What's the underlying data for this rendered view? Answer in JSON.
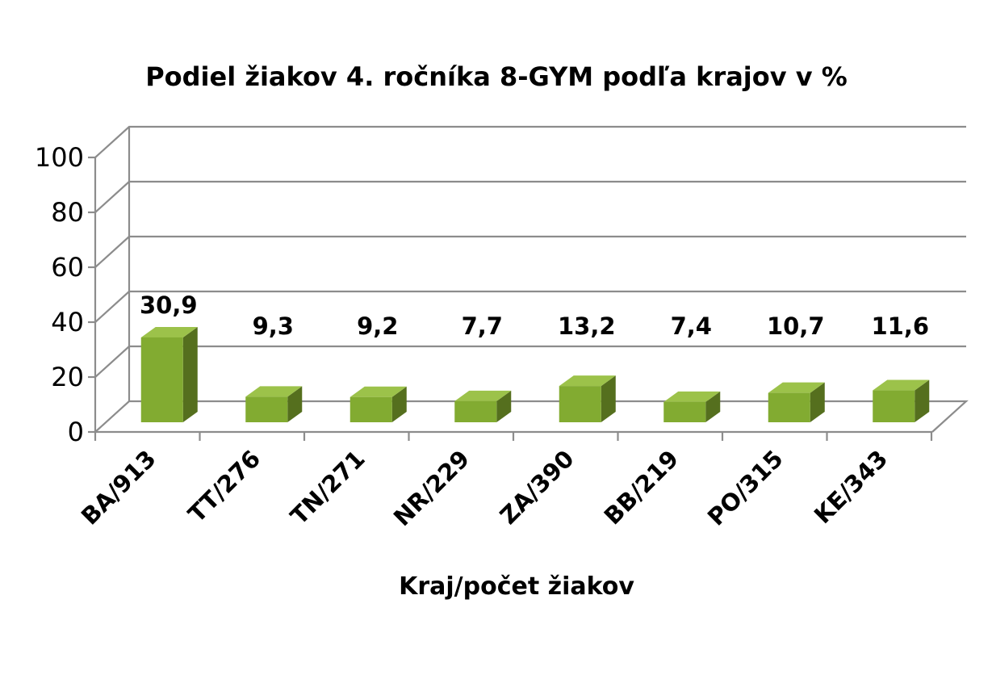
{
  "chart_data": {
    "type": "bar",
    "title": "Podiel žiakov 4. ročníka 8-GYM podľa krajov v %",
    "xlabel": "Kraj/počet žiakov",
    "ylabel": "",
    "categories": [
      "BA/913",
      "TT/276",
      "TN/271",
      "NR/229",
      "ZA/390",
      "BB/219",
      "PO/315",
      "KE/343"
    ],
    "values": [
      30.9,
      9.3,
      9.2,
      7.7,
      13.2,
      7.4,
      10.7,
      11.6
    ],
    "data_labels": [
      "30,9",
      "9,3",
      "9,2",
      "7,7",
      "13,2",
      "7,4",
      "10,7",
      "11,6"
    ],
    "ylim": [
      0,
      100
    ],
    "yticks": [
      0,
      20,
      40,
      60,
      80,
      100
    ],
    "grid": true,
    "legend": "none",
    "style": "3d-column",
    "colors": {
      "bar_front": "#82ab31",
      "bar_top": "#9cc24a",
      "bar_side": "#556f1e",
      "grid": "#8c8c8c"
    }
  }
}
